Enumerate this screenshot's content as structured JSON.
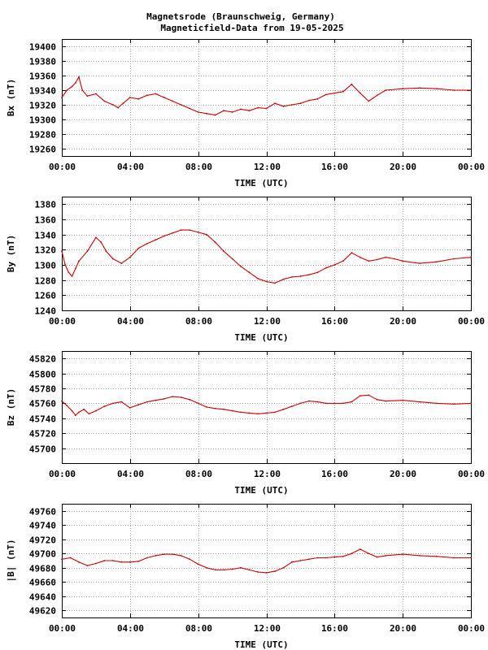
{
  "title_line1": "Magnetsrode (Braunschweig, Germany)",
  "title_line2": "Magneticfield-Data from 19-05-2025",
  "colors": {
    "trace": "#cc0000",
    "grid": "#a0a0a0",
    "frame": "#000000"
  },
  "chart_data": [
    {
      "type": "line",
      "ylabel": "Bx (nT)",
      "xlabel": "TIME (UTC)",
      "xlim": [
        0,
        24
      ],
      "xticks": [
        "00:00",
        "04:00",
        "08:00",
        "12:00",
        "16:00",
        "20:00",
        "00:00"
      ],
      "ylim": [
        19250,
        19410
      ],
      "yticks": [
        19260,
        19280,
        19300,
        19320,
        19340,
        19360,
        19380,
        19400
      ],
      "grid": true,
      "series": [
        {
          "x": [
            0,
            0.3,
            0.6,
            0.8,
            1.0,
            1.2,
            1.5,
            2.0,
            2.5,
            3.0,
            3.3,
            3.6,
            4.0,
            4.5,
            5.0,
            5.5,
            6.0,
            6.5,
            7.0,
            7.5,
            8.0,
            8.5,
            9.0,
            9.5,
            10.0,
            10.5,
            11.0,
            11.5,
            12.0,
            12.5,
            13.0,
            13.5,
            14.0,
            14.5,
            15.0,
            15.5,
            16.0,
            16.5,
            17.0,
            17.5,
            18.0,
            18.5,
            19.0,
            20.0,
            21.0,
            22.0,
            23.0,
            24.0
          ],
          "y": [
            19330,
            19340,
            19345,
            19350,
            19358,
            19340,
            19332,
            19335,
            19325,
            19320,
            19316,
            19322,
            19330,
            19328,
            19333,
            19335,
            19330,
            19325,
            19320,
            19315,
            19310,
            19308,
            19306,
            19312,
            19310,
            19314,
            19312,
            19316,
            19315,
            19322,
            19318,
            19320,
            19322,
            19326,
            19328,
            19334,
            19336,
            19338,
            19348,
            19336,
            19325,
            19333,
            19340,
            19342,
            19343,
            19342,
            19340,
            19340
          ]
        }
      ]
    },
    {
      "type": "line",
      "ylabel": "By (nT)",
      "xlabel": "TIME (UTC)",
      "xlim": [
        0,
        24
      ],
      "xticks": [
        "00:00",
        "04:00",
        "08:00",
        "12:00",
        "16:00",
        "20:00",
        "00:00"
      ],
      "ylim": [
        1240,
        1390
      ],
      "yticks": [
        1240,
        1260,
        1280,
        1300,
        1320,
        1340,
        1360,
        1380
      ],
      "grid": true,
      "series": [
        {
          "x": [
            0,
            0.2,
            0.4,
            0.6,
            0.8,
            1.0,
            1.5,
            2.0,
            2.3,
            2.6,
            3.0,
            3.5,
            4.0,
            4.5,
            5.0,
            5.5,
            6.0,
            6.5,
            7.0,
            7.5,
            8.0,
            8.5,
            9.0,
            9.5,
            10.0,
            10.5,
            11.0,
            11.5,
            12.0,
            12.5,
            13.0,
            13.5,
            14.0,
            14.5,
            15.0,
            15.5,
            16.0,
            16.5,
            17.0,
            17.5,
            18.0,
            18.5,
            19.0,
            19.5,
            20.0,
            21.0,
            22.0,
            23.0,
            24.0
          ],
          "y": [
            1318,
            1300,
            1290,
            1285,
            1295,
            1305,
            1318,
            1336,
            1330,
            1318,
            1308,
            1302,
            1310,
            1322,
            1328,
            1333,
            1338,
            1342,
            1346,
            1346,
            1343,
            1340,
            1330,
            1318,
            1308,
            1298,
            1290,
            1282,
            1278,
            1276,
            1281,
            1284,
            1285,
            1287,
            1290,
            1296,
            1300,
            1305,
            1316,
            1310,
            1305,
            1307,
            1310,
            1308,
            1305,
            1302,
            1304,
            1308,
            1310
          ]
        }
      ]
    },
    {
      "type": "line",
      "ylabel": "Bz (nT)",
      "xlabel": "TIME (UTC)",
      "xlim": [
        0,
        24
      ],
      "xticks": [
        "00:00",
        "04:00",
        "08:00",
        "12:00",
        "16:00",
        "20:00",
        "00:00"
      ],
      "ylim": [
        45680,
        45830
      ],
      "yticks": [
        45700,
        45720,
        45740,
        45760,
        45780,
        45800,
        45820
      ],
      "grid": true,
      "series": [
        {
          "x": [
            0,
            0.3,
            0.6,
            0.8,
            1.0,
            1.3,
            1.6,
            2.0,
            2.5,
            3.0,
            3.5,
            4.0,
            4.5,
            5.0,
            5.5,
            6.0,
            6.5,
            7.0,
            7.5,
            8.0,
            8.5,
            9.0,
            9.5,
            10.0,
            10.5,
            11.0,
            11.5,
            12.0,
            12.5,
            13.0,
            13.5,
            14.0,
            14.5,
            15.0,
            15.5,
            16.0,
            16.5,
            17.0,
            17.5,
            18.0,
            18.5,
            19.0,
            20.0,
            21.0,
            22.0,
            23.0,
            24.0
          ],
          "y": [
            45763,
            45757,
            45750,
            45744,
            45748,
            45752,
            45746,
            45750,
            45756,
            45760,
            45762,
            45754,
            45758,
            45762,
            45764,
            45766,
            45769,
            45768,
            45765,
            45760,
            45755,
            45753,
            45752,
            45750,
            45748,
            45747,
            45746,
            45747,
            45748,
            45752,
            45756,
            45760,
            45763,
            45762,
            45760,
            45760,
            45760,
            45762,
            45770,
            45771,
            45765,
            45763,
            45764,
            45762,
            45760,
            45759,
            45760
          ]
        }
      ]
    },
    {
      "type": "line",
      "ylabel": "|B| (nT)",
      "xlabel": "TIME (UTC)",
      "xlim": [
        0,
        24
      ],
      "xticks": [
        "00:00",
        "04:00",
        "08:00",
        "12:00",
        "16:00",
        "20:00",
        "00:00"
      ],
      "ylim": [
        49610,
        49770
      ],
      "yticks": [
        49620,
        49640,
        49660,
        49680,
        49700,
        49720,
        49740,
        49760
      ],
      "grid": true,
      "series": [
        {
          "x": [
            0,
            0.5,
            1.0,
            1.5,
            2.0,
            2.5,
            3.0,
            3.5,
            4.0,
            4.5,
            5.0,
            5.5,
            6.0,
            6.5,
            7.0,
            7.5,
            8.0,
            8.5,
            9.0,
            9.5,
            10.0,
            10.5,
            11.0,
            11.5,
            12.0,
            12.5,
            13.0,
            13.5,
            14.0,
            14.5,
            15.0,
            15.5,
            16.0,
            16.5,
            17.0,
            17.5,
            18.0,
            18.5,
            19.0,
            20.0,
            21.0,
            22.0,
            23.0,
            24.0
          ],
          "y": [
            49692,
            49694,
            49688,
            49683,
            49686,
            49690,
            49690,
            49688,
            49688,
            49689,
            49694,
            49697,
            49699,
            49699,
            49697,
            49692,
            49685,
            49680,
            49677,
            49677,
            49678,
            49680,
            49677,
            49674,
            49673,
            49675,
            49680,
            49688,
            49690,
            49692,
            49694,
            49694,
            49695,
            49696,
            49700,
            49706,
            49700,
            49695,
            49697,
            49699,
            49697,
            49696,
            49694,
            49694
          ]
        }
      ]
    }
  ]
}
